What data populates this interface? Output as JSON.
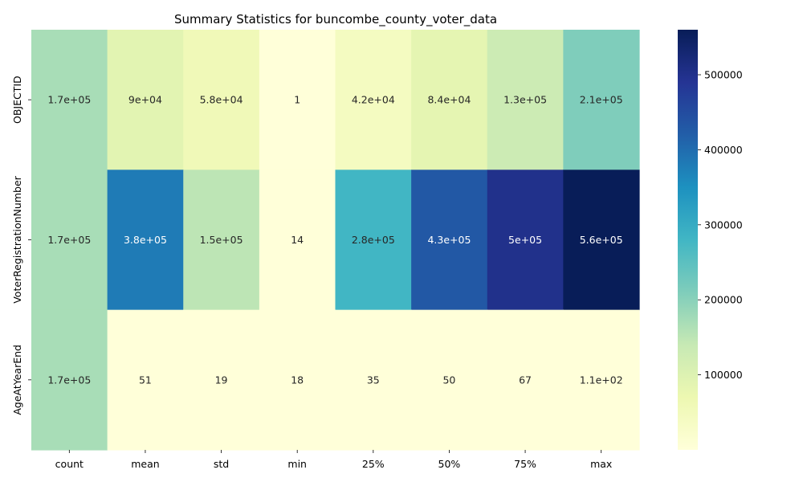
{
  "chart_data": {
    "type": "heatmap",
    "title": "Summary Statistics for buncombe_county_voter_data",
    "xlabel": "",
    "ylabel": "",
    "columns": [
      "count",
      "mean",
      "std",
      "min",
      "25%",
      "50%",
      "75%",
      "max"
    ],
    "rows": [
      "OBJECTID",
      "VoterRegistrationNumber",
      "AgeAtYearEnd"
    ],
    "values": [
      [
        170000,
        90000,
        58000,
        1,
        42000,
        84000,
        130000,
        210000
      ],
      [
        170000,
        380000,
        150000,
        14,
        280000,
        430000,
        500000,
        560000
      ],
      [
        170000,
        51,
        19,
        18,
        35,
        50,
        67,
        110
      ]
    ],
    "annotations": [
      [
        "1.7e+05",
        "9e+04",
        "5.8e+04",
        "1",
        "4.2e+04",
        "8.4e+04",
        "1.3e+05",
        "2.1e+05"
      ],
      [
        "1.7e+05",
        "3.8e+05",
        "1.5e+05",
        "14",
        "2.8e+05",
        "4.3e+05",
        "5e+05",
        "5.6e+05"
      ],
      [
        "1.7e+05",
        "51",
        "19",
        "18",
        "35",
        "50",
        "67",
        "1.1e+02"
      ]
    ],
    "colormap": "YlGnBu",
    "colorbar": {
      "range": [
        1,
        560000
      ],
      "ticks": [
        100000,
        200000,
        300000,
        400000,
        500000
      ],
      "tick_labels": [
        "100000",
        "200000",
        "300000",
        "400000",
        "500000"
      ]
    }
  }
}
